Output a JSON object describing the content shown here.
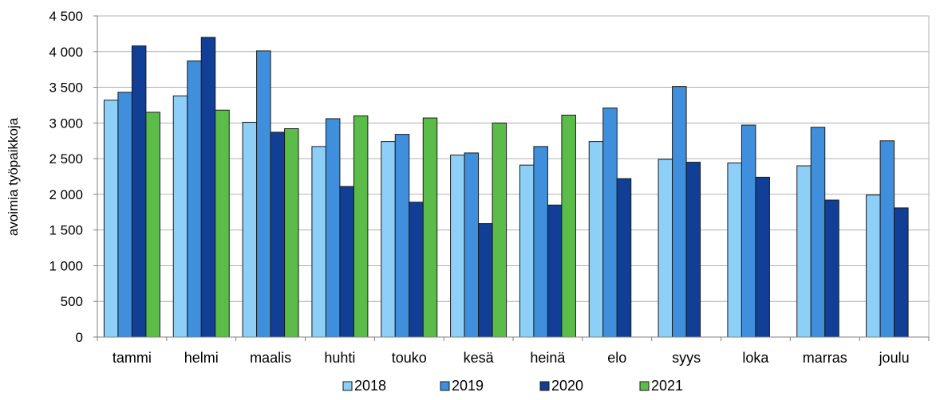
{
  "chart_data": {
    "type": "bar",
    "title": "",
    "xlabel": "",
    "ylabel": "avoimia työpaikkoja",
    "ylim": [
      0,
      4500
    ],
    "yticks": [
      0,
      500,
      1000,
      1500,
      2000,
      2500,
      3000,
      3500,
      4000,
      4500
    ],
    "ytick_labels": [
      "0",
      "500",
      "1 000",
      "1 500",
      "2 000",
      "2 500",
      "3 000",
      "3 500",
      "4 000",
      "4 500"
    ],
    "categories": [
      "tammi",
      "helmi",
      "maalis",
      "huhti",
      "touko",
      "kesä",
      "heinä",
      "elo",
      "syys",
      "loka",
      "marras",
      "joulu"
    ],
    "series": [
      {
        "name": "2018",
        "color": "#8ecff7",
        "values": [
          3320,
          3380,
          3010,
          2670,
          2740,
          2550,
          2410,
          2740,
          2490,
          2440,
          2400,
          1990
        ]
      },
      {
        "name": "2019",
        "color": "#3f8fdc",
        "values": [
          3430,
          3870,
          4010,
          3060,
          2840,
          2580,
          2670,
          3210,
          3510,
          2970,
          2940,
          2750
        ]
      },
      {
        "name": "2020",
        "color": "#123f96",
        "values": [
          4080,
          4200,
          2870,
          2110,
          1890,
          1590,
          1850,
          2220,
          2450,
          2240,
          1920,
          1810
        ]
      },
      {
        "name": "2021",
        "color": "#5cbc4a",
        "values": [
          3150,
          3180,
          2920,
          3100,
          3070,
          3000,
          3110,
          null,
          null,
          null,
          null,
          null
        ]
      }
    ],
    "grid": true,
    "legend_position": "bottom"
  }
}
